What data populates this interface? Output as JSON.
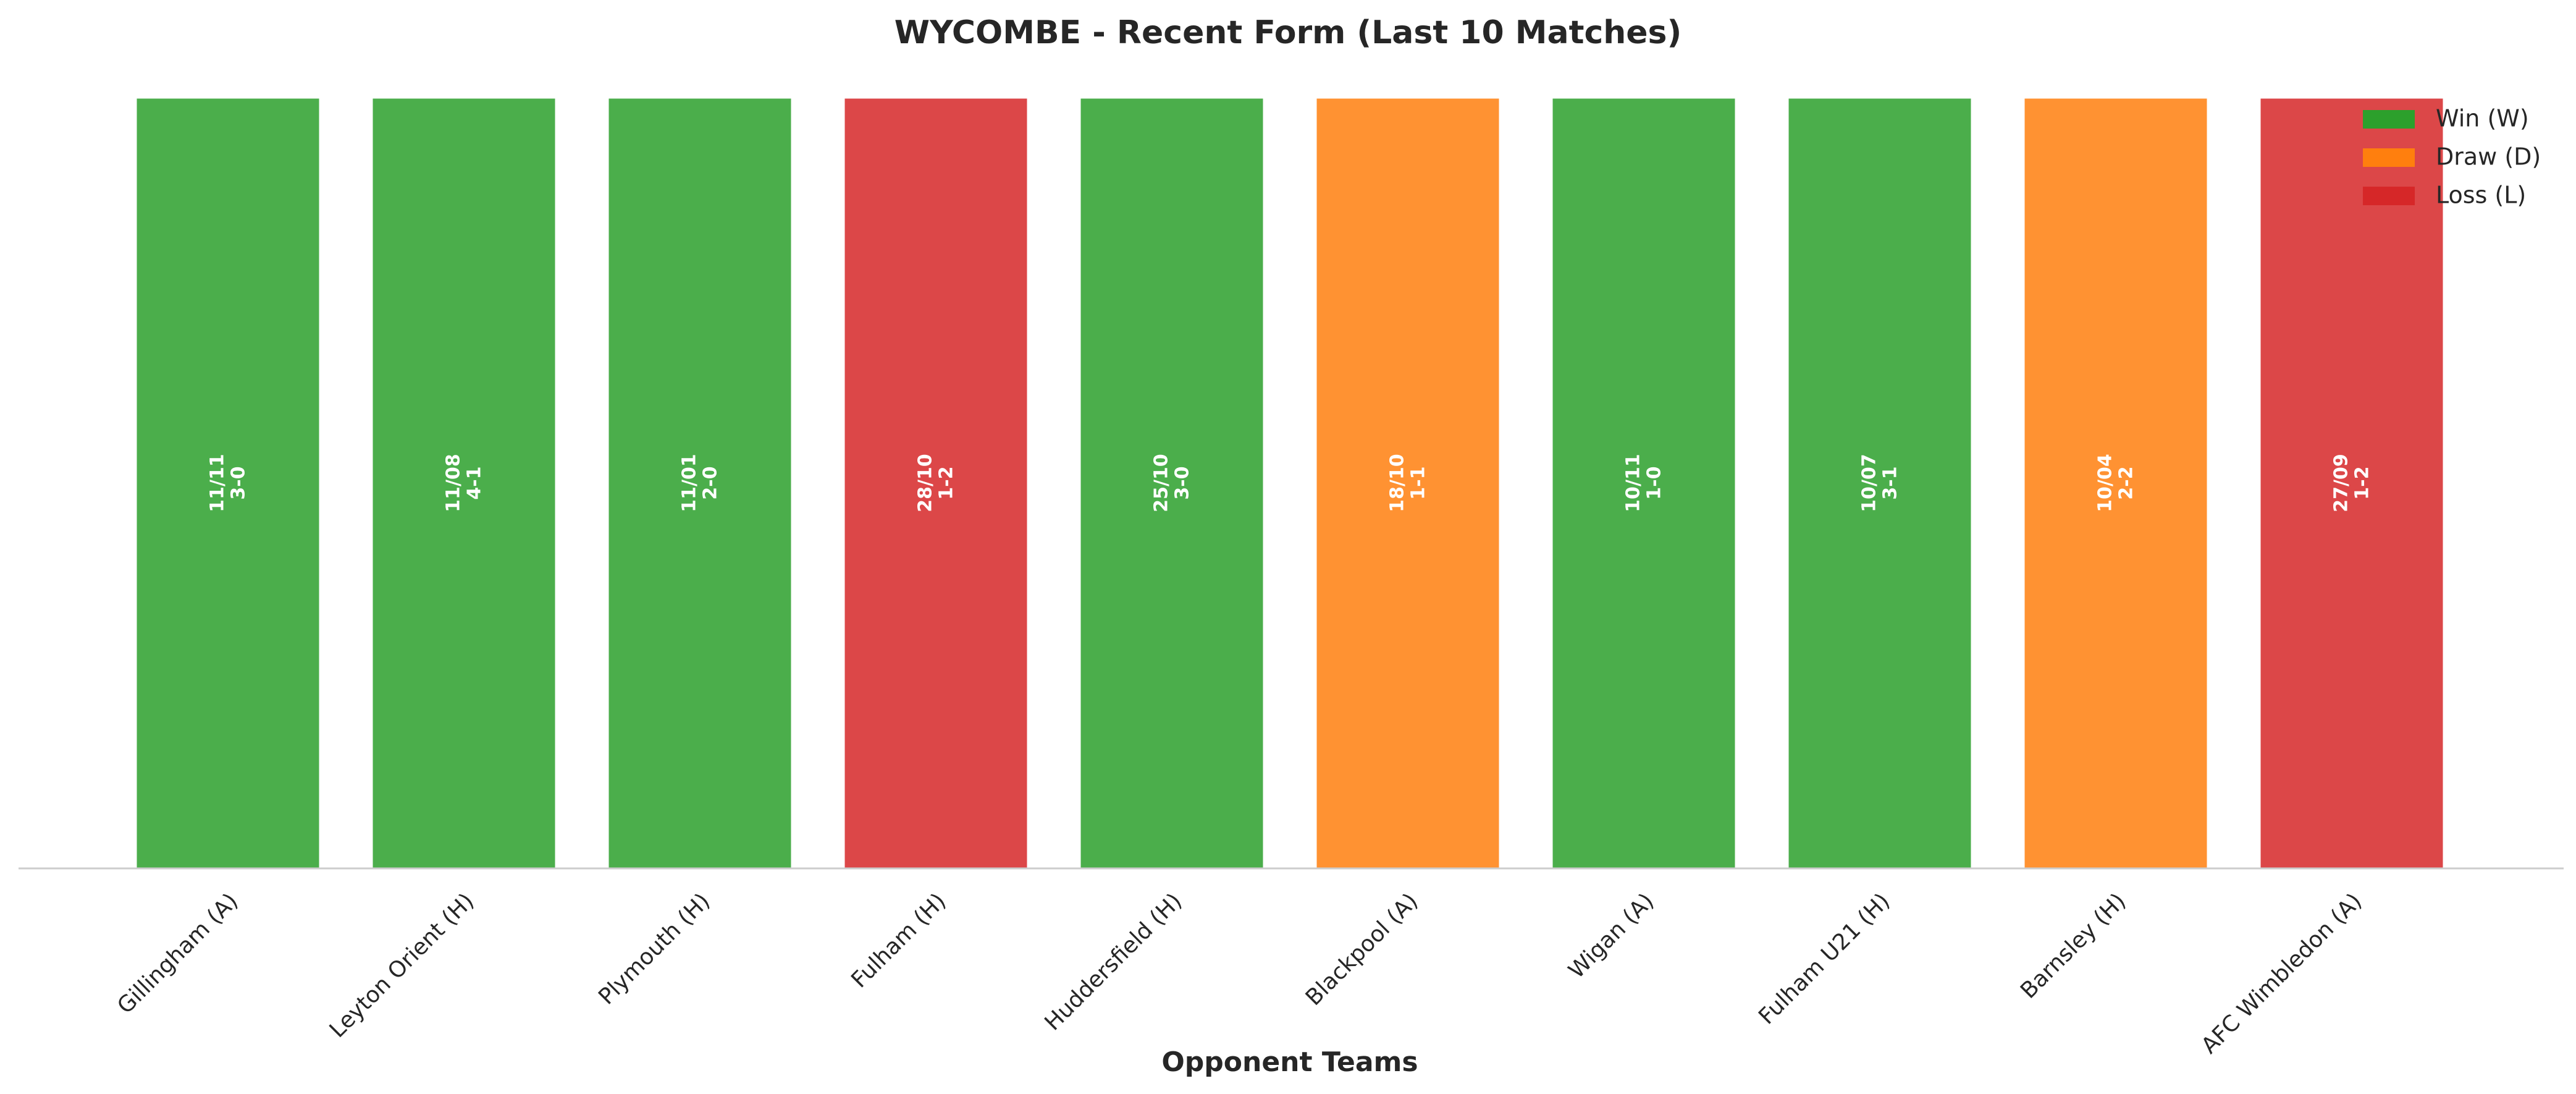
{
  "chart_data": {
    "type": "bar",
    "title": "WYCOMBE - Recent Form (Last 10 Matches)",
    "xlabel": "Opponent Teams",
    "ylabel": "",
    "ylim": [
      0,
      1
    ],
    "grid": false,
    "legend_position": "top-right",
    "categories": [
      "Gillingham (A)",
      "Leyton Orient (H)",
      "Plymouth (H)",
      "Fulham (H)",
      "Huddersfield (H)",
      "Blackpool (A)",
      "Wigan (A)",
      "Fulham U21 (H)",
      "Barnsley (H)",
      "AFC Wimbledon (A)"
    ],
    "values": [
      1,
      1,
      1,
      1,
      1,
      1,
      1,
      1,
      1,
      1
    ],
    "results": [
      "W",
      "W",
      "W",
      "L",
      "W",
      "D",
      "W",
      "W",
      "D",
      "L"
    ],
    "dates": [
      "11/11",
      "11/08",
      "11/01",
      "28/10",
      "25/10",
      "18/10",
      "10/11",
      "10/07",
      "10/04",
      "27/09"
    ],
    "scores": [
      "3-0",
      "4-1",
      "2-0",
      "1-2",
      "3-0",
      "1-1",
      "1-0",
      "3-1",
      "2-2",
      "1-2"
    ],
    "legend": [
      {
        "key": "W",
        "label": "Win (W)",
        "color": "#2ca02c"
      },
      {
        "key": "D",
        "label": "Draw (D)",
        "color": "#ff7f0e"
      },
      {
        "key": "L",
        "label": "Loss (L)",
        "color": "#d62728"
      }
    ]
  }
}
